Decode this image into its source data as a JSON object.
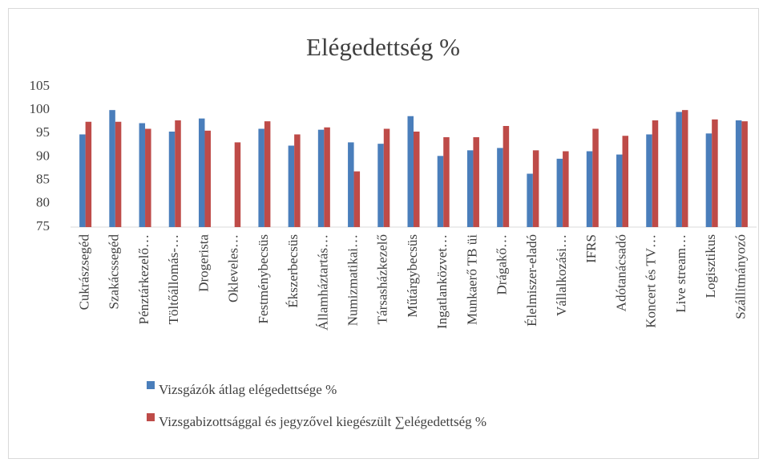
{
  "chart_data": {
    "type": "bar",
    "title": "Elégedettség %",
    "categories": [
      "Cukrászsegéd",
      "Szakácssegéd",
      "Pénztárkezelő…",
      "Töltőállomás-…",
      "Drogerista",
      "Okleveles…",
      "Festménybecsüs",
      "Ékszerbecsüs",
      "Államháztartás…",
      "Numizmatikai…",
      "Társasházkezelő",
      "Műtárgybecsüs",
      "Ingatlanközvet…",
      "Munkaerő TB üi",
      "Drágakő…",
      "Élelmiszer-eladó",
      "Vállalkozási…",
      "IFRS",
      "Adótanácsadó",
      "Koncert és TV…",
      "Live stream…",
      "Logisztikus",
      "Szállítmányozó"
    ],
    "series": [
      {
        "name": "Vizsgázók átlag elégedettsége %",
        "color": "#4a7ebb",
        "values": [
          94.8,
          100,
          97.2,
          95.4,
          98.2,
          null,
          96,
          92.4,
          95.8,
          93.1,
          92.8,
          98.7,
          90.2,
          91.4,
          91.9,
          86.4,
          89.6,
          91.2,
          90.5,
          94.8,
          99.6,
          95,
          97.8
        ]
      },
      {
        "name": "Vizsgabizottsággal és jegyzővel kiegészült ∑elégedettség %",
        "color": "#be4b48",
        "values": [
          97.5,
          97.5,
          96,
          97.8,
          95.6,
          93.1,
          97.6,
          94.8,
          96.3,
          86.9,
          96,
          95.4,
          94.2,
          94.2,
          96.6,
          91.4,
          91.2,
          96,
          94.5,
          97.8,
          100,
          98,
          97.6
        ]
      }
    ],
    "ylim": [
      75,
      105
    ],
    "yticks": [
      75,
      80,
      85,
      90,
      95,
      100,
      105
    ],
    "grid": false,
    "legend": "bottom"
  }
}
